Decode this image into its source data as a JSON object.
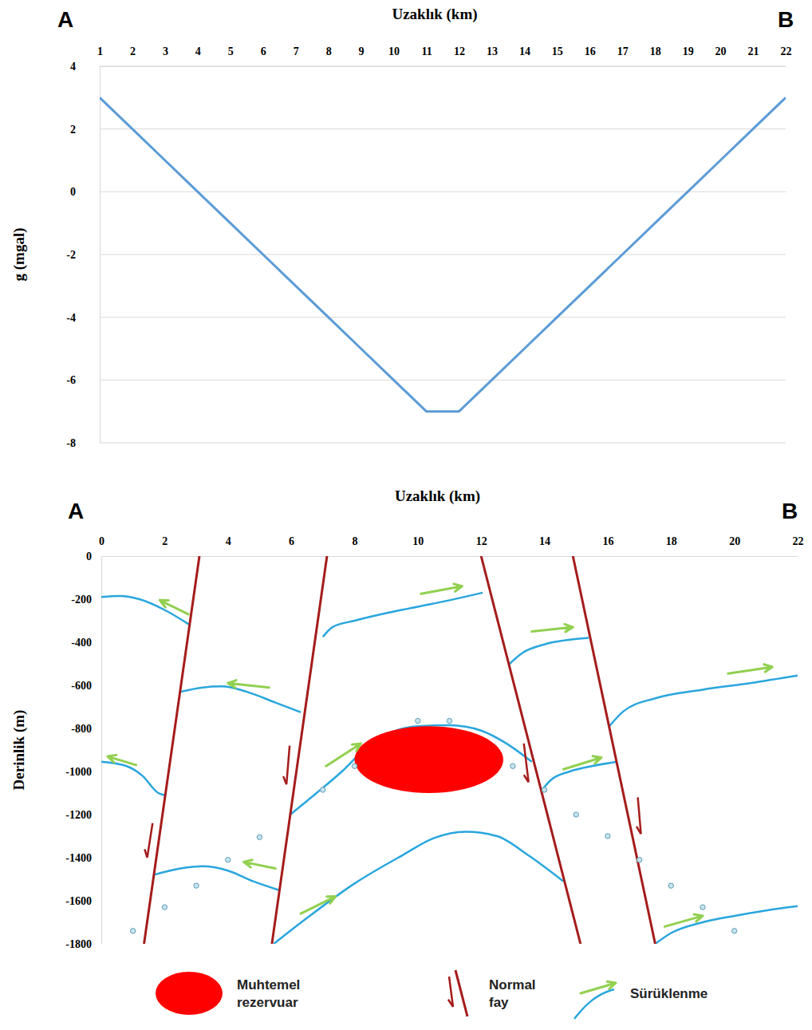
{
  "chart_data": [
    {
      "type": "line",
      "letters": [
        "A",
        "B"
      ],
      "xlabel": "Uzaklık (km)",
      "ylabel": "g (mgal)",
      "x": [
        1,
        2,
        3,
        4,
        5,
        6,
        7,
        8,
        9,
        10,
        11,
        12,
        13,
        14,
        15,
        16,
        17,
        18,
        19,
        20,
        21,
        22
      ],
      "values": [
        3,
        2,
        1,
        0,
        -1,
        -2,
        -3,
        -4,
        -5,
        -6,
        -7,
        -7,
        -6,
        -5,
        -4,
        -3,
        -2,
        -1,
        0,
        1,
        2,
        3
      ],
      "color": "#5b9bd5",
      "xlim": [
        1,
        22
      ],
      "xticks": [
        1,
        2,
        3,
        4,
        5,
        6,
        7,
        8,
        9,
        10,
        11,
        12,
        13,
        14,
        15,
        16,
        17,
        18,
        19,
        20,
        21,
        22
      ],
      "ylim": [
        -8,
        4
      ],
      "yticks": [
        -8,
        -6,
        -4,
        -2,
        0,
        2,
        4
      ],
      "grid": true
    },
    {
      "type": "cross_section",
      "letters": [
        "A",
        "B"
      ],
      "xlabel": "Uzaklık (km)",
      "ylabel": "Derinlik (m)",
      "xlim": [
        0,
        22
      ],
      "xticks": [
        0,
        2,
        4,
        6,
        8,
        10,
        12,
        14,
        16,
        18,
        20,
        22
      ],
      "ylim": [
        -1800,
        0
      ],
      "yticks": [
        0,
        -200,
        -400,
        -600,
        -800,
        -1000,
        -1200,
        -1400,
        -1600,
        -1800
      ],
      "legend": "bottom",
      "reservoir": {
        "name": "Muhtemel rezervuar",
        "color": "#ff0000",
        "x": 10.35,
        "y": -945,
        "rx": 2.35,
        "ry": 155
      },
      "faults": {
        "name": "Normal fay",
        "color": "#a51c1c",
        "lines": [
          {
            "x": [
              3.1,
              1.35
            ],
            "y": [
              0,
              -1800
            ]
          },
          {
            "x": [
              7.13,
              5.39
            ],
            "y": [
              0,
              -1800
            ]
          },
          {
            "x": [
              12.0,
              15.14
            ],
            "y": [
              0,
              -1800
            ]
          },
          {
            "x": [
              14.9,
              17.5
            ],
            "y": [
              0,
              -1800
            ]
          }
        ],
        "arrows": [
          {
            "x": [
              1.62,
              1.45
            ],
            "y": [
              -1240,
              -1400
            ]
          },
          {
            "x": [
              5.95,
              5.85
            ],
            "y": [
              -880,
              -1060
            ]
          },
          {
            "x": [
              13.35,
              13.5
            ],
            "y": [
              -870,
              -1050
            ]
          },
          {
            "x": [
              16.95,
              17.05
            ],
            "y": [
              -1120,
              -1290
            ]
          }
        ]
      },
      "horizons": {
        "name": "Sürüklenme",
        "color": "#29a6dd",
        "lines": [
          {
            "x": [
              0,
              0.6,
              1.2,
              2,
              2.8
            ],
            "y": [
              -190,
              -185,
              -200,
              -250,
              -320
            ]
          },
          {
            "x": [
              2.5,
              3.2,
              3.8,
              4.6,
              5.5,
              6.3
            ],
            "y": [
              -630,
              -610,
              -605,
              -630,
              -680,
              -725
            ]
          },
          {
            "x": [
              0,
              0.8,
              1.3,
              1.8,
              2.0
            ],
            "y": [
              -955,
              -975,
              -1020,
              -1100,
              -1110
            ]
          },
          {
            "x": [
              1.65,
              2.5,
              3.2,
              4,
              4.8,
              5.6
            ],
            "y": [
              -1480,
              -1450,
              -1440,
              -1460,
              -1510,
              -1550
            ]
          },
          {
            "x": [
              7.0,
              7.3,
              8,
              9,
              10,
              11,
              12.05
            ],
            "y": [
              -375,
              -330,
              -300,
              -265,
              -235,
              -205,
              -170
            ]
          },
          {
            "x": [
              5.97,
              6.8,
              7.6,
              8.3,
              9,
              10,
              11,
              12,
              12.8,
              13.6
            ],
            "y": [
              -1200,
              -1100,
              -1000,
              -900,
              -830,
              -790,
              -785,
              -810,
              -870,
              -955
            ]
          },
          {
            "x": [
              5.45,
              6.5,
              8,
              9.5,
              10.5,
              11.5,
              12.5,
              13.5,
              14.6
            ],
            "y": [
              -1800,
              -1680,
              -1520,
              -1390,
              -1310,
              -1280,
              -1300,
              -1390,
              -1510
            ]
          },
          {
            "x": [
              12.9,
              13.3,
              14,
              15.4
            ],
            "y": [
              -500,
              -450,
              -410,
              -380
            ]
          },
          {
            "x": [
              13.9,
              14.2,
              14.8,
              15.5,
              16.3
            ],
            "y": [
              -1090,
              -1040,
              -1000,
              -975,
              -955
            ]
          },
          {
            "x": [
              16.05,
              16.5,
              17.5,
              19,
              20.5,
              22
            ],
            "y": [
              -790,
              -720,
              -660,
              -620,
              -590,
              -555
            ]
          },
          {
            "x": [
              17.5,
              18,
              19,
              20,
              21,
              22
            ],
            "y": [
              -1800,
              -1750,
              -1700,
              -1670,
              -1645,
              -1625
            ]
          }
        ]
      },
      "drag_arrows": {
        "color": "#92d050",
        "arrows": [
          {
            "x": [
              2.75,
              1.85
            ],
            "y": [
              -270,
              -205
            ]
          },
          {
            "x": [
              5.3,
              4.0
            ],
            "y": [
              -610,
              -590
            ]
          },
          {
            "x": [
              1.1,
              0.2
            ],
            "y": [
              -970,
              -930
            ]
          },
          {
            "x": [
              5.5,
              4.5
            ],
            "y": [
              -1450,
              -1420
            ]
          },
          {
            "x": [
              10.1,
              11.4
            ],
            "y": [
              -175,
              -140
            ]
          },
          {
            "x": [
              7.1,
              8.2
            ],
            "y": [
              -975,
              -870
            ]
          },
          {
            "x": [
              6.3,
              7.4
            ],
            "y": [
              -1660,
              -1580
            ]
          },
          {
            "x": [
              13.6,
              14.9
            ],
            "y": [
              -350,
              -330
            ]
          },
          {
            "x": [
              14.6,
              15.8
            ],
            "y": [
              -990,
              -935
            ]
          },
          {
            "x": [
              19.8,
              21.2
            ],
            "y": [
              -545,
              -515
            ]
          },
          {
            "x": [
              17.8,
              19.0
            ],
            "y": [
              -1720,
              -1670
            ]
          }
        ]
      },
      "points": {
        "color": "#c5e4f0",
        "marker": "circle",
        "x": [
          1,
          2,
          3,
          4,
          5,
          7,
          8,
          10,
          11,
          13,
          14,
          15,
          16,
          17,
          18,
          19,
          20
        ],
        "y": [
          -1740,
          -1630,
          -1530,
          -1410,
          -1305,
          -1085,
          -975,
          -765,
          -765,
          -975,
          -1085,
          -1200,
          -1300,
          -1410,
          -1530,
          -1630,
          -1740
        ]
      }
    }
  ]
}
